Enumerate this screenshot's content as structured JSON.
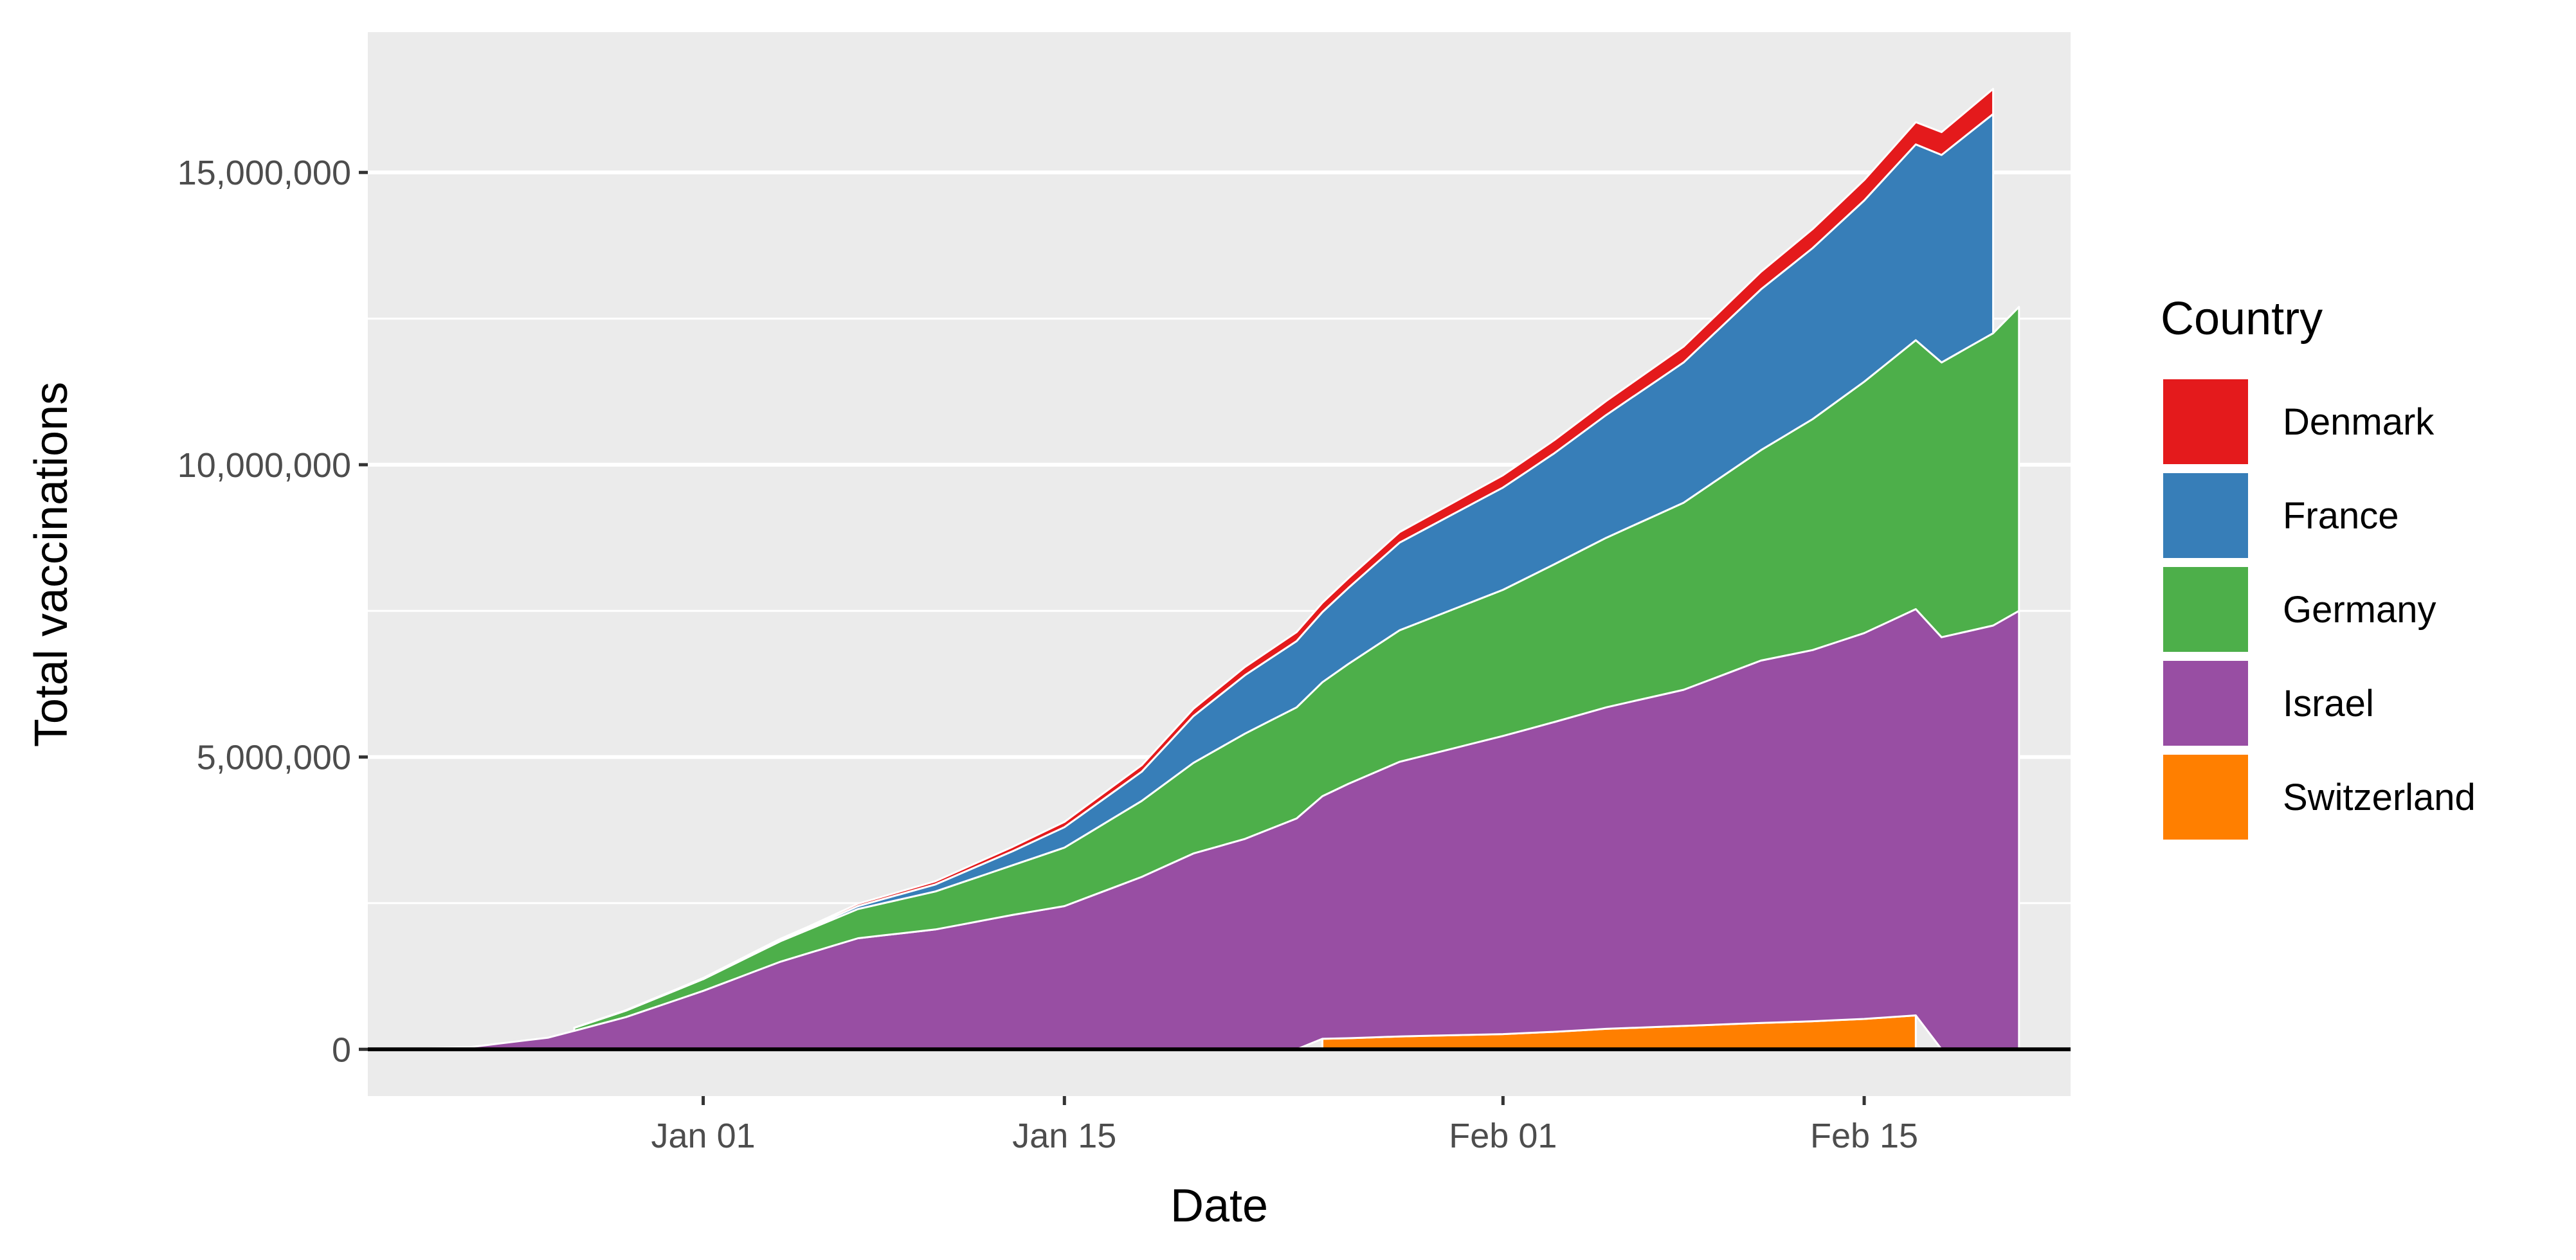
{
  "chart_data": {
    "type": "area",
    "stacked": true,
    "title": "",
    "xlabel": "Date",
    "ylabel": "Total vaccinations",
    "xlim": [
      "2020-12-19",
      "2021-02-23"
    ],
    "ylim": [
      -800000,
      17400000
    ],
    "x_ticks": [
      {
        "date": "2021-01-01",
        "label": "Jan 01"
      },
      {
        "date": "2021-01-15",
        "label": "Jan 15"
      },
      {
        "date": "2021-02-01",
        "label": "Feb 01"
      },
      {
        "date": "2021-02-15",
        "label": "Feb 15"
      }
    ],
    "y_ticks": [
      {
        "value": 0,
        "label": "0"
      },
      {
        "value": 5000000,
        "label": "5,000,000"
      },
      {
        "value": 10000000,
        "label": "10,000,000"
      },
      {
        "value": 15000000,
        "label": "15,000,000"
      }
    ],
    "y_minor_ticks": [
      2500000,
      7500000,
      12500000
    ],
    "grid": true,
    "background": "#ebebeb",
    "legend": {
      "title": "Country",
      "position": "right"
    },
    "stack_order_bottom_to_top": [
      "Switzerland",
      "Israel",
      "Germany",
      "France",
      "Denmark"
    ],
    "series": [
      {
        "name": "Denmark",
        "color": "#e41a1c",
        "x": [
          "2020-12-27",
          "2021-01-01",
          "2021-01-05",
          "2021-01-07",
          "2021-01-10",
          "2021-01-13",
          "2021-01-15",
          "2021-01-18",
          "2021-01-20",
          "2021-01-22",
          "2021-01-25",
          "2021-01-28",
          "2021-02-01",
          "2021-02-05",
          "2021-02-08",
          "2021-02-11",
          "2021-02-15",
          "2021-02-17",
          "2021-02-18",
          "2021-02-20"
        ],
        "values": [
          2000,
          18000,
          30000,
          40000,
          55000,
          75000,
          90000,
          110000,
          125000,
          140000,
          160000,
          180000,
          210000,
          240000,
          270000,
          300000,
          350000,
          380000,
          390000,
          430000
        ]
      },
      {
        "name": "France",
        "color": "#377eb8",
        "x": [
          "2021-01-01",
          "2021-01-05",
          "2021-01-07",
          "2021-01-10",
          "2021-01-13",
          "2021-01-15",
          "2021-01-18",
          "2021-01-20",
          "2021-01-22",
          "2021-01-25",
          "2021-01-28",
          "2021-02-01",
          "2021-02-03",
          "2021-02-05",
          "2021-02-08",
          "2021-02-11",
          "2021-02-15",
          "2021-02-17",
          "2021-02-18",
          "2021-02-20"
        ],
        "values": [
          2000,
          20000,
          50000,
          120000,
          240000,
          350000,
          500000,
          800000,
          1000000,
          1200000,
          1500000,
          1750000,
          1900000,
          2100000,
          2400000,
          2750000,
          3100000,
          3350000,
          3550000,
          3750000
        ]
      },
      {
        "name": "Germany",
        "color": "#4daf4a",
        "x": [
          "2020-12-27",
          "2021-01-01",
          "2021-01-04",
          "2021-01-07",
          "2021-01-10",
          "2021-01-13",
          "2021-01-15",
          "2021-01-18",
          "2021-01-20",
          "2021-01-22",
          "2021-01-25",
          "2021-01-28",
          "2021-02-01",
          "2021-02-03",
          "2021-02-05",
          "2021-02-08",
          "2021-02-11",
          "2021-02-15",
          "2021-02-17",
          "2021-02-18",
          "2021-02-20",
          "2021-02-21"
        ],
        "values": [
          50000,
          200000,
          350000,
          500000,
          650000,
          850000,
          1000000,
          1300000,
          1550000,
          1800000,
          1950000,
          2250000,
          2500000,
          2700000,
          2900000,
          3200000,
          3600000,
          4300000,
          4600000,
          4700000,
          5000000,
          5200000
        ]
      },
      {
        "name": "Israel",
        "color": "#984ea3",
        "x": [
          "2020-12-20",
          "2020-12-23",
          "2020-12-26",
          "2020-12-29",
          "2021-01-01",
          "2021-01-04",
          "2021-01-07",
          "2021-01-10",
          "2021-01-13",
          "2021-01-15",
          "2021-01-18",
          "2021-01-20",
          "2021-01-22",
          "2021-01-24",
          "2021-01-26",
          "2021-01-28",
          "2021-02-01",
          "2021-02-03",
          "2021-02-05",
          "2021-02-08",
          "2021-02-11",
          "2021-02-13",
          "2021-02-15",
          "2021-02-17",
          "2021-02-18",
          "2021-02-20",
          "2021-02-21"
        ],
        "values": [
          0,
          40000,
          200000,
          550000,
          1000000,
          1500000,
          1900000,
          2050000,
          2300000,
          2450000,
          2950000,
          3350000,
          3600000,
          3950000,
          4350000,
          4700000,
          5100000,
          5300000,
          5500000,
          5750000,
          6200000,
          6350000,
          6600000,
          6950000,
          7050000,
          7250000,
          7500000
        ]
      },
      {
        "name": "Switzerland",
        "color": "#ff7f00",
        "x": [
          "2021-01-25",
          "2021-01-26",
          "2021-01-28",
          "2021-02-01",
          "2021-02-03",
          "2021-02-05",
          "2021-02-08",
          "2021-02-11",
          "2021-02-13",
          "2021-02-15",
          "2021-02-17"
        ],
        "values": [
          180000,
          190000,
          220000,
          260000,
          300000,
          350000,
          400000,
          450000,
          480000,
          520000,
          580000
        ]
      }
    ]
  }
}
